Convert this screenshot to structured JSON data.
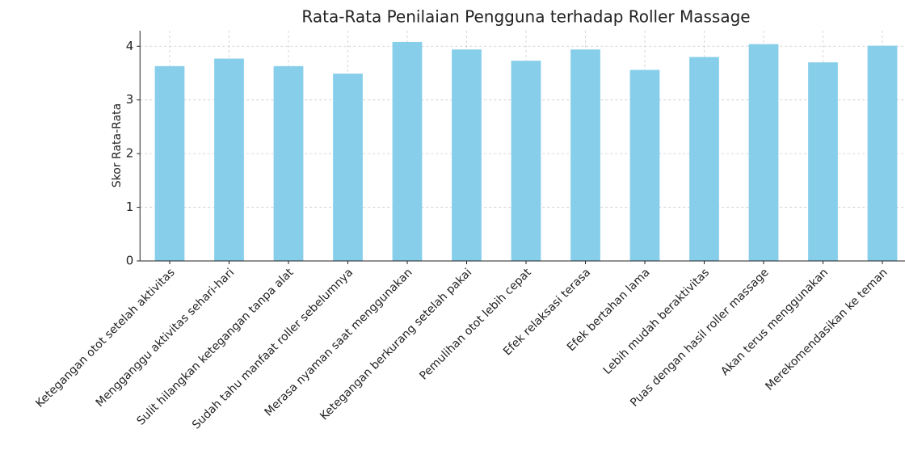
{
  "chart_data": {
    "type": "bar",
    "title": "Rata-Rata Penilaian Pengguna terhadap Roller Massage",
    "y_label": "Skor Rata-Rata",
    "categories": [
      "Ketegangan otot setelah aktivitas",
      "Mengganggu aktivitas sehari-hari",
      "Sulit hilangkan ketegangan tanpa alat",
      "Sudah tahu manfaat roller sebelumnya",
      "Merasa nyaman saat menggunakan",
      "Ketegangan berkurang setelah pakai",
      "Pemulihan otot lebih cepat",
      "Efek relaksasi terasa",
      "Efek bertahan lama",
      "Lebih mudah beraktivitas",
      "Puas dengan hasil roller massage",
      "Akan terus menggunakan",
      "Merekomendasikan ke teman"
    ],
    "values": [
      3.63,
      3.77,
      3.63,
      3.49,
      4.08,
      3.94,
      3.73,
      3.94,
      3.56,
      3.8,
      4.04,
      3.7,
      4.01
    ],
    "color": "#87ceeb",
    "ylim": [
      0,
      4.29
    ],
    "yticks": [
      0,
      1,
      2,
      3,
      4
    ],
    "grid": true
  }
}
